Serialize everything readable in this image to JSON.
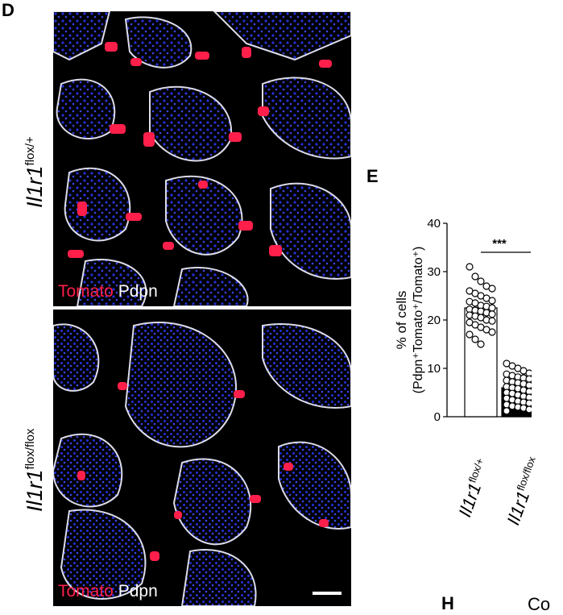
{
  "panels": {
    "D": {
      "letter": "D",
      "rows": [
        {
          "genotype_base": "Il1r1",
          "genotype_sup": "flox/+",
          "stain_red": "Tomato",
          "stain_white": "Pdpn"
        },
        {
          "genotype_base": "Il1r1",
          "genotype_sup": "flox/flox",
          "stain_red": "Tomato",
          "stain_white": "Pdpn"
        }
      ]
    },
    "E": {
      "letter": "E"
    },
    "H": {
      "letter": "H",
      "cut_text": "Co"
    }
  },
  "colors": {
    "tomato": "#ff1f4a",
    "dapi": "#2330d8",
    "pdpn": "#e8e8f0",
    "bar_fill_2": "#000000",
    "bar_fill_1": "#ffffff"
  },
  "chart_data": {
    "type": "bar",
    "ylabel": "% of cells",
    "ylabel2": "(Pdpn⁺Tomato⁺/Tomato⁺)",
    "ylim": [
      0,
      40
    ],
    "yticks": [
      0,
      10,
      20,
      30,
      40
    ],
    "categories": [
      {
        "base": "Il1r1",
        "sup": "flox/+"
      },
      {
        "base": "Il1r1",
        "sup": "flox/flox"
      }
    ],
    "values": [
      22.5,
      6
    ],
    "sem": [
      0.8,
      0.5
    ],
    "points": [
      [
        31,
        29,
        28,
        27,
        26.5,
        26,
        25.5,
        25,
        24.5,
        24,
        23.8,
        23.5,
        23,
        22.8,
        22.5,
        22.2,
        22,
        21.8,
        21.5,
        21.2,
        21,
        20.8,
        20.5,
        20,
        19.8,
        19.5,
        19,
        18.5,
        18,
        17.5,
        17,
        16,
        15
      ],
      [
        11,
        10.5,
        10,
        9.5,
        9,
        8.8,
        8.5,
        8.2,
        8,
        7.8,
        7.5,
        7.2,
        7,
        6.8,
        6.5,
        6.2,
        6,
        5.8,
        5.5,
        5.2,
        5,
        4.8,
        4.5,
        4.2,
        4,
        3.8,
        3.5,
        3.2,
        3,
        2.8,
        2.5,
        2.2,
        2,
        1.8,
        1.5,
        1.2
      ]
    ],
    "significance": "***"
  }
}
